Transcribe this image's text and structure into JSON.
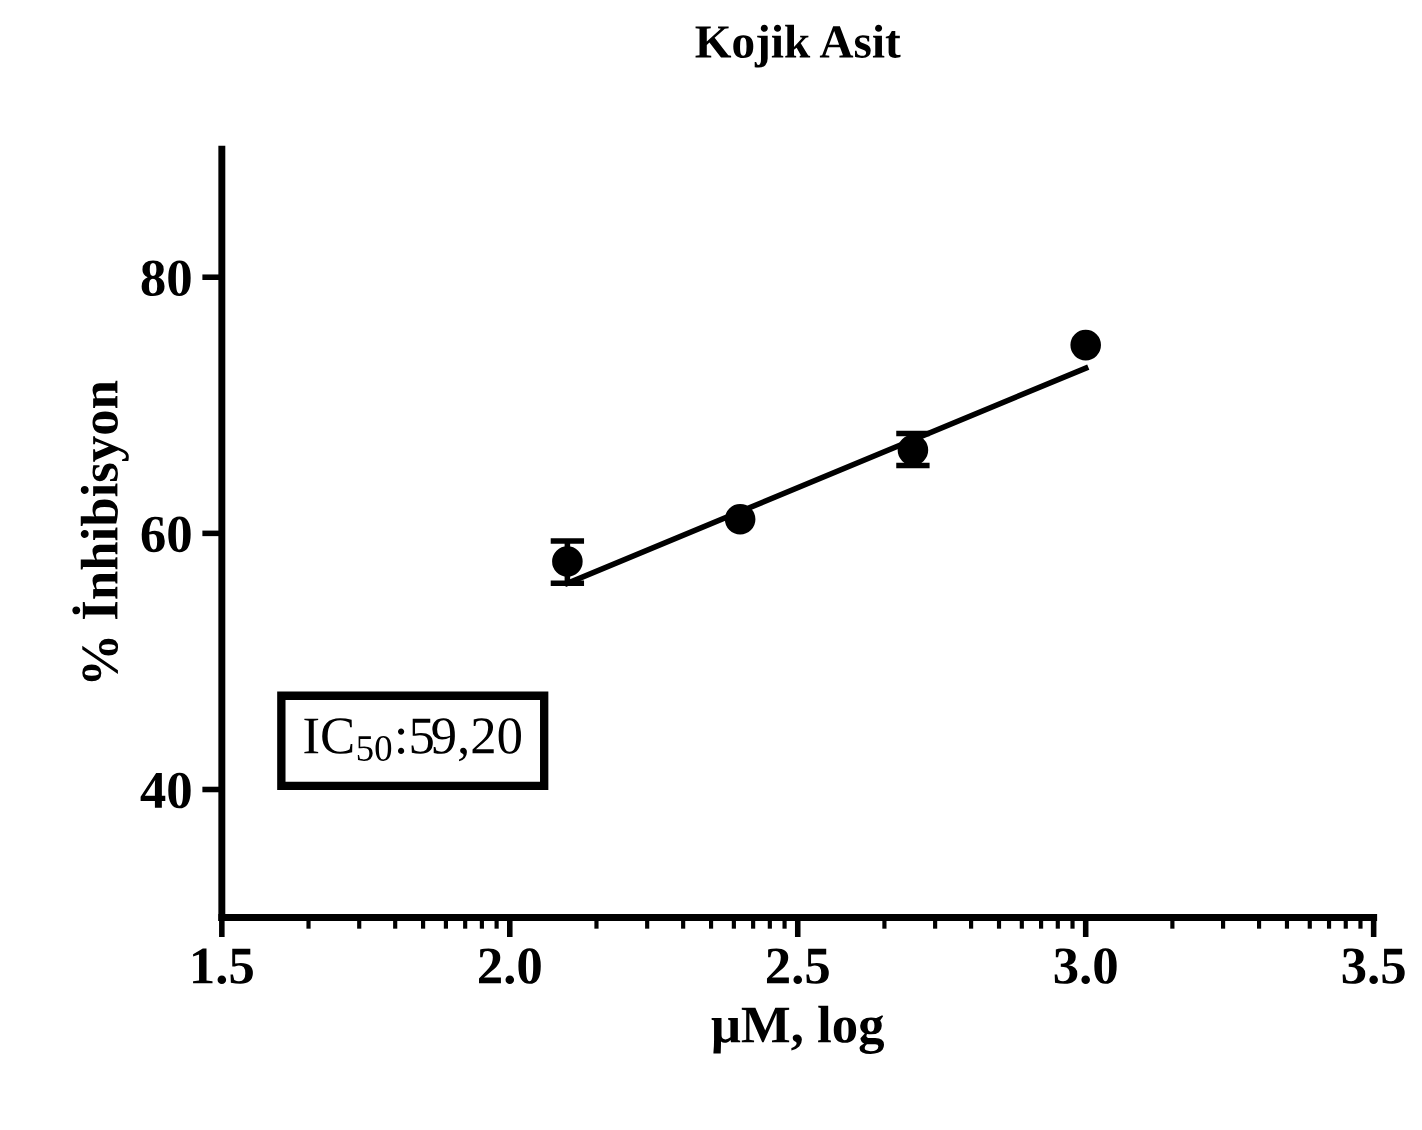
{
  "chart_data": {
    "type": "scatter",
    "title": "Kojik Asit",
    "xlabel": "μM, log",
    "ylabel": "% İnhibisyon",
    "xlim": [
      1.5,
      3.5
    ],
    "xticks": [
      1.5,
      {
        "value": 2,
        "label": "2.0"
      },
      2.5,
      {
        "value": 3,
        "label": "3.0"
      },
      3.5
    ],
    "ylim": [
      30,
      90
    ],
    "yticks": [
      40,
      60,
      80
    ],
    "grid": false,
    "series": [
      {
        "marker": "circle",
        "color": "#000000",
        "x": [
          2.1,
          2.4,
          2.7,
          3.0
        ],
        "values": [
          57.8,
          61.1,
          66.5,
          74.7
        ],
        "errors": [
          [
            56.1,
            59.4
          ],
          null,
          [
            65.3,
            67.8
          ],
          null
        ]
      },
      {
        "type": "line",
        "color": "#000000",
        "x": [
          2.1,
          3.0
        ],
        "values": [
          56.1,
          72.9
        ],
        "line_style": "solid"
      }
    ],
    "annotations": [
      "IC$_{50}$:59,20"
    ]
  }
}
